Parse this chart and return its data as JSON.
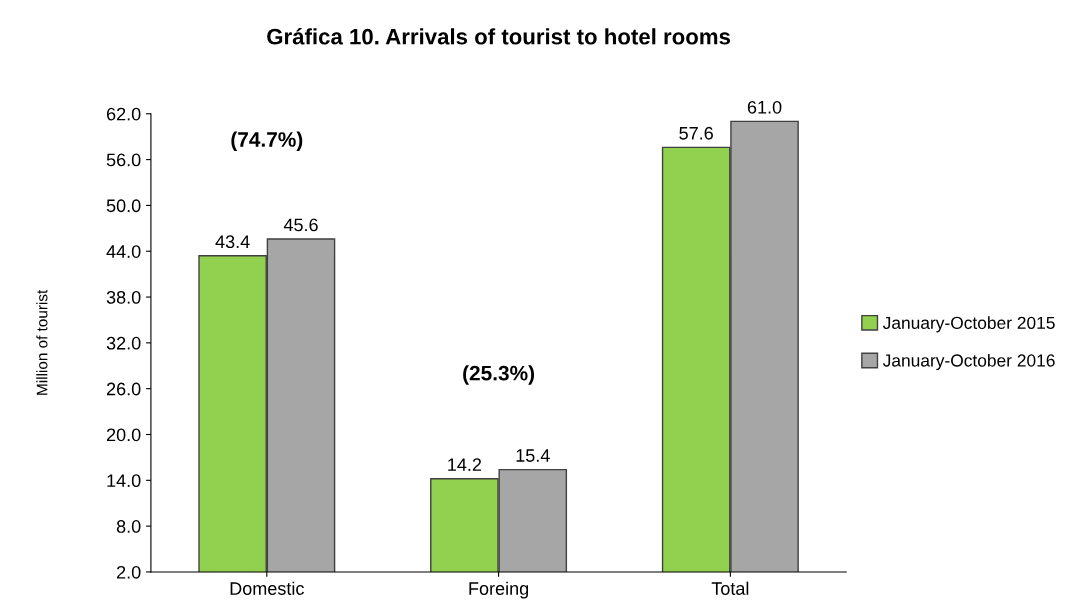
{
  "chart_data": {
    "type": "bar",
    "title": "Gráfica 10. Arrivals of tourist to hotel rooms",
    "ylabel": "Million of tourist",
    "categories": [
      "Domestic",
      "Foreing",
      "Total"
    ],
    "series": [
      {
        "name": "January-October 2015",
        "color": "#92d050",
        "values": [
          43.4,
          14.2,
          57.6
        ],
        "value_labels": [
          "43.4",
          "14.2",
          "57.6"
        ]
      },
      {
        "name": "January-October 2016",
        "color": "#a6a6a6",
        "values": [
          45.6,
          15.4,
          61.0
        ],
        "value_labels": [
          "45.6",
          "15.4",
          "61.0"
        ]
      }
    ],
    "ylim": [
      2,
      62
    ],
    "yticks": [
      {
        "value": 2,
        "label": "2.0"
      },
      {
        "value": 8,
        "label": "8.0"
      },
      {
        "value": 14,
        "label": "14.0"
      },
      {
        "value": 20,
        "label": "20.0"
      },
      {
        "value": 26,
        "label": "26.0"
      },
      {
        "value": 32,
        "label": "32.0"
      },
      {
        "value": 38,
        "label": "38.0"
      },
      {
        "value": 44,
        "label": "44.0"
      },
      {
        "value": 50,
        "label": "50.0"
      },
      {
        "value": 56,
        "label": "56.0"
      },
      {
        "value": 62,
        "label": "62.0"
      }
    ],
    "annotations": [
      "(74.7%)",
      "(25.3%)"
    ],
    "grid": false,
    "legend": "right"
  }
}
